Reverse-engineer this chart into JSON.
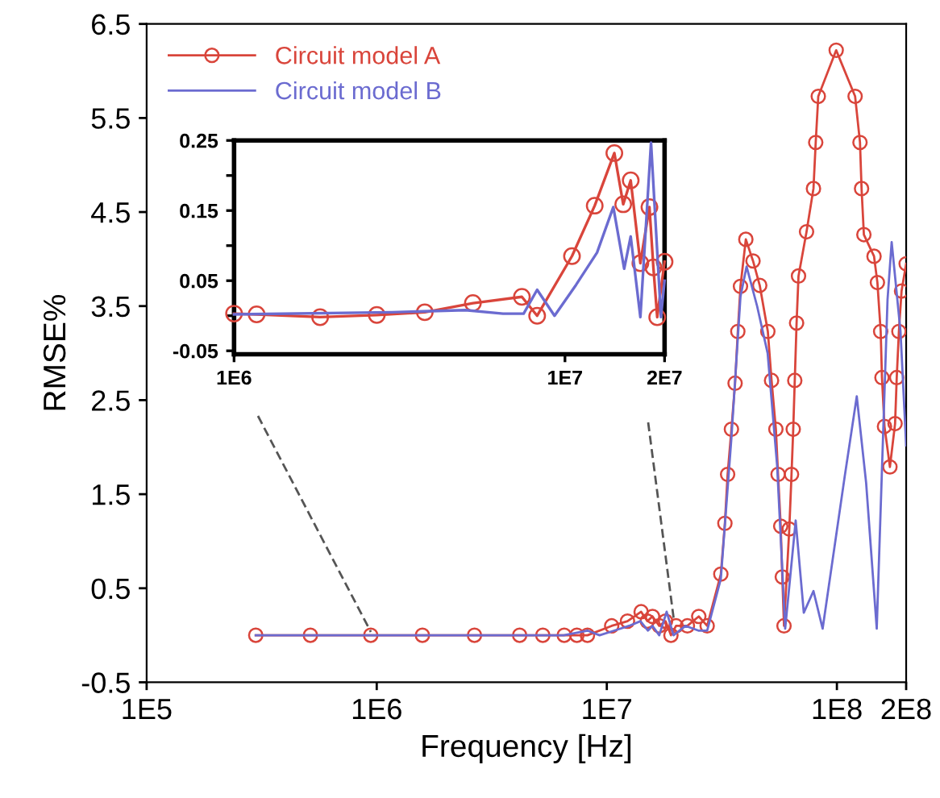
{
  "chart_data": [
    {
      "type": "line",
      "xlabel": "Frequency [Hz]",
      "ylabel": "RMSE%",
      "log": "x",
      "grid": false,
      "legend": "top left",
      "xlim": [
        100000,
        200000000
      ],
      "xticks": [
        {
          "value": 100000,
          "label": "1E5"
        },
        {
          "value": 1000000,
          "label": "1E6"
        },
        {
          "value": 10000000,
          "label": "1E7"
        },
        {
          "value": 100000000,
          "label": "1E8"
        },
        {
          "value": 200000000,
          "label": "2E8"
        }
      ],
      "ylim": [
        -0.5,
        6.5
      ],
      "yticks": [
        -0.5,
        0.5,
        1.5,
        2.5,
        3.5,
        4.5,
        5.5,
        6.5
      ],
      "series": [
        {
          "name": "Circuit model A",
          "color": "#d9453b",
          "marker": "circle",
          "x": [
            298000,
            515000,
            942000,
            1580000,
            2660000,
            4180000,
            5270000,
            6530000,
            7410000,
            8240000,
            10500000,
            12300000,
            14100000,
            15000000,
            15800000,
            16900000,
            18000000,
            19000000,
            20000000,
            22400000,
            25100000,
            27300000,
            31300000,
            32600000,
            33500000,
            34800000,
            36100000,
            37100000,
            38100000,
            40200000,
            43200000,
            46200000,
            50100000,
            52000000,
            54300000,
            55500000,
            57000000,
            57900000,
            58900000,
            62100000,
            63500000,
            64600000,
            65600000,
            66800000,
            68100000,
            73800000,
            79100000,
            80900000,
            83000000,
            99300000,
            120000000,
            126000000,
            128000000,
            131000000,
            145000000,
            150000000,
            155000000,
            157000000,
            161000000,
            170000000,
            179000000,
            182000000,
            186000000,
            191000000,
            200000000
          ],
          "values": [
            0,
            0,
            0,
            0,
            0,
            0,
            0,
            0,
            0,
            0,
            0.1,
            0.15,
            0.25,
            0.15,
            0.2,
            0.1,
            0.15,
            0,
            0.1,
            0.1,
            0.2,
            0.1,
            0.65,
            1.19,
            1.71,
            2.19,
            2.68,
            3.23,
            3.71,
            4.21,
            3.98,
            3.72,
            3.23,
            2.71,
            2.19,
            1.71,
            1.16,
            0.62,
            0.1,
            1.13,
            1.71,
            2.19,
            2.71,
            3.32,
            3.82,
            4.29,
            4.75,
            5.24,
            5.73,
            6.22,
            5.73,
            5.24,
            4.75,
            4.26,
            4.03,
            3.75,
            3.23,
            2.74,
            2.22,
            1.79,
            2.25,
            2.74,
            3.23,
            3.66,
            3.95
          ]
        },
        {
          "name": "Circuit model B",
          "color": "#6b6bd0",
          "marker": "none",
          "x": [
            298000,
            1000000,
            3000000,
            6500000,
            8240000,
            9300000,
            10800000,
            12500000,
            14000000,
            15100000,
            15800000,
            16900000,
            18200000,
            19500000,
            22000000,
            25000000,
            27300000,
            31300000,
            34800000,
            38100000,
            40500000,
            45000000,
            50000000,
            55000000,
            59600000,
            66200000,
            71800000,
            79100000,
            86700000,
            108000000,
            122000000,
            134000000,
            149000000,
            166000000,
            173000000,
            189000000,
            200000000
          ],
          "values": [
            0,
            0,
            0,
            0,
            0.05,
            0,
            0.05,
            0.1,
            0.15,
            0.05,
            0.1,
            0,
            0.25,
            0,
            0.1,
            0.05,
            0.05,
            0.6,
            2.1,
            3.6,
            3.92,
            3.5,
            3.0,
            1.8,
            0.07,
            1.22,
            0.24,
            0.47,
            0.07,
            1.68,
            2.54,
            1.62,
            0.07,
            3.57,
            4.18,
            3.23,
            2.02
          ]
        }
      ]
    },
    {
      "type": "line",
      "log": "x",
      "grid": false,
      "xlim": [
        1000000,
        20000000
      ],
      "xticks": [
        {
          "value": 1000000,
          "label": "1E6"
        },
        {
          "value": 10000000,
          "label": "1E7"
        },
        {
          "value": 20000000,
          "label": "2E7"
        }
      ],
      "ylim": [
        -0.055,
        0.25
      ],
      "yticks": [
        -0.05,
        {
          "value": 0,
          "label": null
        },
        0.05,
        {
          "value": 0.1,
          "label": null
        },
        0.15,
        {
          "value": 0.2,
          "label": null
        },
        0.25
      ],
      "series": [
        {
          "color": "#d9453b",
          "marker": "circle",
          "x": [
            1000000,
            1170000,
            1820000,
            2700000,
            3770000,
            5270000,
            7410000,
            8240000,
            10500000,
            12300000,
            14100000,
            15000000,
            15800000,
            16900000,
            18000000,
            18500000,
            19000000,
            20000000
          ],
          "values": [
            0.003,
            0.002,
            -0.002,
            0.001,
            0.005,
            0.018,
            0.027,
            0,
            0.085,
            0.157,
            0.232,
            0.159,
            0.193,
            0.075,
            0.155,
            0.069,
            -0.002,
            0.077
          ]
        },
        {
          "color": "#6b6bd0",
          "marker": "none",
          "x": [
            1000000,
            3000000,
            5000000,
            6500000,
            7500000,
            8240000,
            9300000,
            10800000,
            12500000,
            14000000,
            15100000,
            15800000,
            16900000,
            18200000,
            19500000,
            20000000
          ],
          "values": [
            0.002,
            0.005,
            0.008,
            0.003,
            0.003,
            0.037,
            0,
            0.044,
            0.09,
            0.155,
            0.067,
            0.113,
            -0.002,
            0.247,
            -0.002,
            0.05
          ]
        }
      ]
    }
  ]
}
